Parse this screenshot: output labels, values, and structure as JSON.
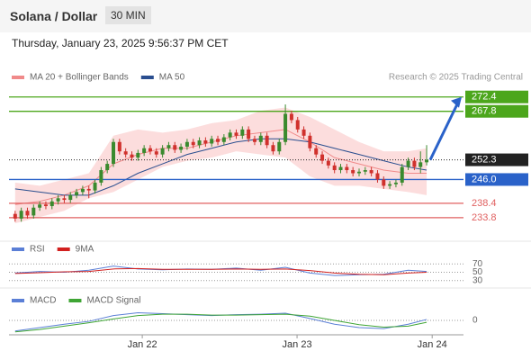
{
  "header": {
    "title": "Solana / Dollar",
    "timeframe": "30 MIN",
    "timestamp": "Thursday, January 23, 2025 9:56:37 PM CET"
  },
  "chart_data": [
    {
      "type": "candlestick",
      "annotation": "Research © 2025 Trading Central",
      "open": [
        235,
        233.5,
        236,
        234.5,
        237,
        238,
        237.5,
        239,
        240,
        239.5,
        241,
        242,
        243,
        242.5,
        245,
        249,
        251,
        258,
        255,
        254,
        253,
        254.5,
        256,
        255,
        254,
        256,
        257,
        255.5,
        256.5,
        258,
        257,
        258.5,
        257.5,
        259,
        258,
        259.5,
        261,
        260,
        262,
        259,
        258,
        260,
        257,
        255,
        258,
        267,
        265,
        262,
        260,
        256,
        254,
        252,
        250.5,
        249,
        250,
        249,
        248,
        248.5,
        249,
        248,
        246,
        244,
        244.5,
        245,
        250,
        252,
        250,
        251.5
      ],
      "high": [
        236,
        237,
        237,
        238,
        239,
        239,
        240,
        241,
        241,
        242,
        243,
        244,
        244,
        246,
        250,
        252,
        259,
        259,
        256,
        255,
        255.5,
        257,
        257,
        256,
        257,
        258,
        258,
        257.5,
        259,
        259,
        259.5,
        259.5,
        260,
        260,
        260.5,
        262,
        262,
        263,
        263,
        260,
        261,
        261,
        258,
        259,
        270,
        268,
        266,
        263,
        261,
        257,
        255,
        253,
        251.5,
        251,
        251,
        250,
        249.5,
        250,
        250,
        249,
        247,
        245.5,
        246,
        251,
        253,
        253,
        255,
        257
      ],
      "low": [
        232.5,
        232.5,
        233.5,
        233.5,
        236,
        236.5,
        236.5,
        238,
        238.5,
        238.5,
        240,
        241,
        240,
        241.5,
        244,
        248,
        250,
        254,
        253,
        252,
        252,
        253.5,
        254,
        253,
        253,
        255,
        254.5,
        254.5,
        255.5,
        256,
        256,
        256.5,
        256.5,
        257,
        257,
        258.5,
        259,
        259,
        258,
        257,
        257,
        256,
        254,
        254,
        257,
        264,
        261,
        259,
        255,
        253,
        251,
        249.5,
        248,
        248,
        248,
        247,
        247,
        247.5,
        247,
        245,
        243,
        243,
        243.5,
        244,
        249,
        249,
        248,
        250.5
      ],
      "close": [
        233.5,
        236,
        234.5,
        237,
        238,
        237.5,
        239,
        240,
        239.5,
        241,
        242,
        243,
        242.5,
        245,
        249,
        251,
        258,
        255,
        254,
        253,
        254.5,
        256,
        255,
        254,
        256,
        257,
        255.5,
        256.5,
        258,
        257,
        258.5,
        257.5,
        259,
        258,
        259.5,
        261,
        260,
        262,
        259,
        258,
        260,
        257,
        255,
        258,
        267,
        265,
        262,
        260,
        256,
        254,
        252,
        250.5,
        249,
        250,
        249,
        248,
        248.5,
        249,
        248,
        246,
        244,
        244.5,
        245,
        250,
        252,
        250,
        251.5,
        252.3
      ],
      "up_color": "#3a8a2e",
      "down_color": "#d0312d",
      "overlay_x": [
        0,
        4,
        8,
        12,
        16,
        20,
        24,
        28,
        32,
        36,
        40,
        44,
        48,
        52,
        56,
        60,
        64,
        67
      ],
      "overlays": [
        {
          "name": "MA 20 + Bollinger Bands",
          "color": "#f08a8a",
          "band_color": "#fbd4d4",
          "values": [
            238,
            239,
            241,
            244,
            251,
            254,
            256,
            256,
            258,
            260,
            261,
            262,
            258,
            253,
            251,
            249,
            248,
            248
          ],
          "upper": [
            245,
            244,
            246,
            248,
            260,
            262,
            261,
            262,
            264,
            265,
            268,
            269,
            266,
            262,
            258,
            255,
            255,
            256
          ],
          "lower": [
            232,
            234,
            236,
            240,
            242,
            246,
            250,
            252,
            253,
            255,
            254,
            253,
            247,
            244,
            244,
            243,
            242,
            241
          ]
        },
        {
          "name": "MA 50",
          "color": "#2a4e8f",
          "values": [
            243,
            242,
            241,
            241,
            244,
            248,
            251,
            254,
            256,
            258,
            259,
            259,
            258,
            256,
            254,
            252,
            250,
            249
          ]
        }
      ],
      "levels": [
        {
          "value": 272.4,
          "color": "#4ca61c",
          "style": "box",
          "line": "solid"
        },
        {
          "value": 267.8,
          "color": "#4ca61c",
          "style": "box",
          "line": "solid"
        },
        {
          "value": 252.3,
          "color": "#222222",
          "style": "box",
          "line": "dotted"
        },
        {
          "value": 246.0,
          "label": "246.0",
          "color": "#2a62c9",
          "style": "box",
          "line": "solid"
        },
        {
          "value": 238.4,
          "color": "#e06060",
          "style": "text",
          "line": "solid"
        },
        {
          "value": 233.8,
          "color": "#e06060",
          "style": "text",
          "line": "solid"
        }
      ],
      "xlim": [
        -1,
        73
      ],
      "ylim": [
        228,
        277.5
      ],
      "xticks": [
        {
          "value": 20.7,
          "label": "Jan 22"
        },
        {
          "value": 45.9,
          "label": "Jan 23"
        },
        {
          "value": 67.9,
          "label": "Jan 24"
        }
      ]
    },
    {
      "type": "line",
      "xlim": [
        -1,
        73
      ],
      "ylim": [
        25,
        75
      ],
      "yticks": [
        30,
        50,
        70
      ],
      "x": [
        0,
        4,
        8,
        12,
        16,
        20,
        24,
        28,
        32,
        36,
        40,
        44,
        48,
        52,
        56,
        60,
        64,
        67
      ],
      "series": [
        {
          "name": "RSI",
          "color": "#5b7fd6",
          "values": [
            48,
            52,
            50,
            55,
            65,
            58,
            56,
            58,
            57,
            60,
            55,
            62,
            48,
            42,
            44,
            45,
            55,
            52
          ]
        },
        {
          "name": "9MA",
          "color": "#d2201f",
          "values": [
            47,
            49,
            51,
            52,
            58,
            59,
            57,
            57,
            57,
            58,
            57,
            58,
            54,
            48,
            45,
            44,
            48,
            50
          ]
        }
      ]
    },
    {
      "type": "line",
      "xlim": [
        -1,
        73
      ],
      "ylim": [
        -3,
        3
      ],
      "yticks": [
        0
      ],
      "x": [
        0,
        4,
        8,
        12,
        16,
        20,
        24,
        28,
        32,
        36,
        40,
        44,
        48,
        52,
        56,
        60,
        64,
        67
      ],
      "series": [
        {
          "name": "MACD",
          "color": "#5b7fd6",
          "values": [
            -2.2,
            -1.5,
            -0.8,
            -0.2,
            1.0,
            1.6,
            1.4,
            1.2,
            1.0,
            1.2,
            1.3,
            1.5,
            0.4,
            -0.8,
            -1.5,
            -1.7,
            -0.8,
            0.2
          ]
        },
        {
          "name": "MACD Signal",
          "color": "#3fa535",
          "values": [
            -2.4,
            -1.9,
            -1.2,
            -0.5,
            0.3,
            1.0,
            1.3,
            1.3,
            1.1,
            1.1,
            1.2,
            1.3,
            0.9,
            0.0,
            -0.9,
            -1.4,
            -1.2,
            -0.4
          ]
        }
      ]
    }
  ]
}
